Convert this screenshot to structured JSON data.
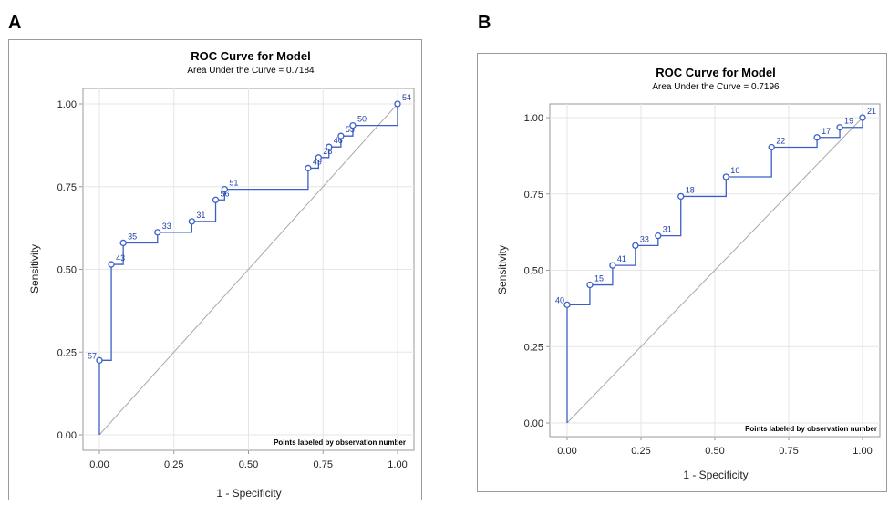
{
  "panels": [
    {
      "label": "A"
    },
    {
      "label": "B"
    }
  ],
  "colors": {
    "curve": "#3a5fc8",
    "grid": "#e6e6e6",
    "diagonal": "#a8a8a8",
    "frame": "#9a9a9a"
  },
  "chart_data": [
    {
      "type": "line",
      "title": "ROC Curve for Model",
      "subtitle": "Area Under the Curve = 0.7184",
      "xlabel": "1 - Specificity",
      "ylabel": "Sensitivity",
      "xlim": [
        0,
        1
      ],
      "ylim": [
        0,
        1
      ],
      "xticks": [
        "0.00",
        "0.25",
        "0.50",
        "0.75",
        "1.00"
      ],
      "yticks": [
        "0.00",
        "0.25",
        "0.50",
        "0.75",
        "1.00"
      ],
      "grid": true,
      "footnote": "Points labeled by observation number",
      "points": [
        {
          "x": 0.0,
          "y": 0.225,
          "label": "57"
        },
        {
          "x": 0.04,
          "y": 0.515,
          "label": "43"
        },
        {
          "x": 0.08,
          "y": 0.58,
          "label": "35"
        },
        {
          "x": 0.195,
          "y": 0.612,
          "label": "33"
        },
        {
          "x": 0.31,
          "y": 0.645,
          "label": "31"
        },
        {
          "x": 0.39,
          "y": 0.71,
          "label": "56"
        },
        {
          "x": 0.42,
          "y": 0.742,
          "label": "51"
        },
        {
          "x": 0.7,
          "y": 0.806,
          "label": "49"
        },
        {
          "x": 0.735,
          "y": 0.838,
          "label": "28"
        },
        {
          "x": 0.77,
          "y": 0.87,
          "label": "46"
        },
        {
          "x": 0.81,
          "y": 0.903,
          "label": "55"
        },
        {
          "x": 0.85,
          "y": 0.935,
          "label": "50"
        },
        {
          "x": 1.0,
          "y": 1.0,
          "label": "54"
        }
      ]
    },
    {
      "type": "line",
      "title": "ROC Curve for Model",
      "subtitle": "Area Under the Curve = 0.7196",
      "xlabel": "1 - Specificity",
      "ylabel": "Sensitivity",
      "xlim": [
        0,
        1
      ],
      "ylim": [
        0,
        1
      ],
      "xticks": [
        "0.00",
        "0.25",
        "0.50",
        "0.75",
        "1.00"
      ],
      "yticks": [
        "0.00",
        "0.25",
        "0.50",
        "0.75",
        "1.00"
      ],
      "grid": true,
      "footnote": "Points labeled by observation number",
      "points": [
        {
          "x": 0.0,
          "y": 0.387,
          "label": "40"
        },
        {
          "x": 0.077,
          "y": 0.452,
          "label": "15"
        },
        {
          "x": 0.154,
          "y": 0.516,
          "label": "41"
        },
        {
          "x": 0.231,
          "y": 0.581,
          "label": "33"
        },
        {
          "x": 0.308,
          "y": 0.613,
          "label": "31"
        },
        {
          "x": 0.385,
          "y": 0.742,
          "label": "18"
        },
        {
          "x": 0.538,
          "y": 0.806,
          "label": "16"
        },
        {
          "x": 0.692,
          "y": 0.903,
          "label": "22"
        },
        {
          "x": 0.846,
          "y": 0.935,
          "label": "17"
        },
        {
          "x": 0.923,
          "y": 0.968,
          "label": "19"
        },
        {
          "x": 1.0,
          "y": 1.0,
          "label": "21"
        }
      ]
    }
  ]
}
